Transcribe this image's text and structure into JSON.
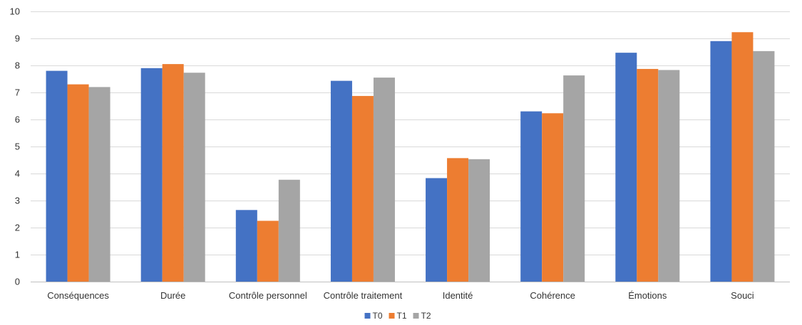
{
  "chart_data": {
    "type": "bar",
    "categories": [
      "Conséquences",
      "Durée",
      "Contrôle personnel",
      "Contrôle traitement",
      "Identité",
      "Cohérence",
      "Émotions",
      "Souci"
    ],
    "series": [
      {
        "name": "T0",
        "color": "#4472C4",
        "values": [
          7.8,
          7.9,
          2.65,
          7.43,
          3.83,
          6.3,
          8.47,
          8.9
        ]
      },
      {
        "name": "T1",
        "color": "#ED7D31",
        "values": [
          7.3,
          8.05,
          2.25,
          6.87,
          4.57,
          6.23,
          7.87,
          9.23
        ]
      },
      {
        "name": "T2",
        "color": "#A5A5A5",
        "values": [
          7.2,
          7.73,
          3.77,
          7.55,
          4.53,
          7.63,
          7.83,
          8.53
        ]
      }
    ],
    "ylim": [
      0,
      10
    ],
    "yticks": [
      "0",
      "1",
      "2",
      "3",
      "4",
      "5",
      "6",
      "7",
      "8",
      "9",
      "10"
    ],
    "grid": true,
    "legend_position": "bottom"
  }
}
